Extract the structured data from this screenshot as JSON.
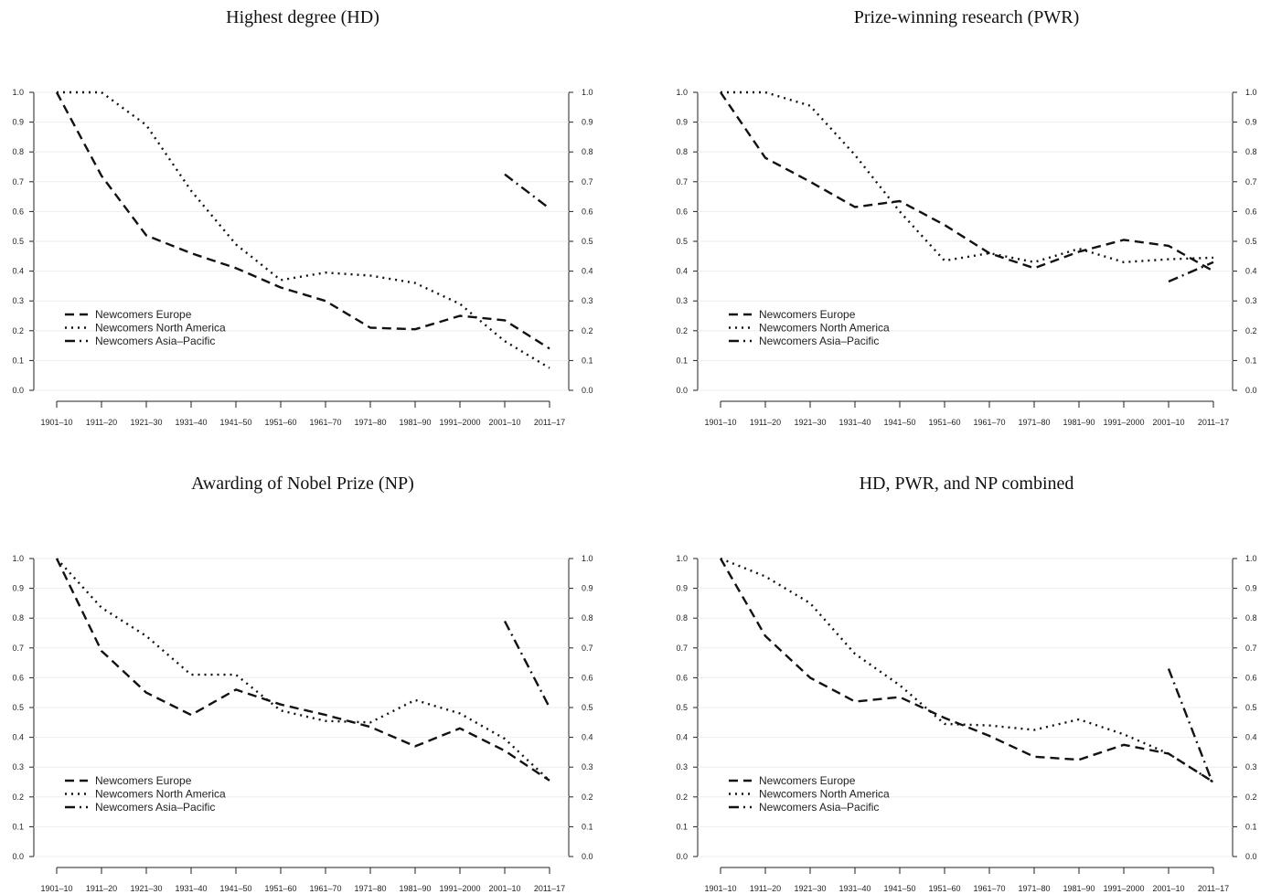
{
  "chart_data": [
    {
      "type": "line",
      "title": "Highest degree (HD)",
      "categories": [
        "1901–10",
        "1911–20",
        "1921–30",
        "1931–40",
        "1941–50",
        "1951–60",
        "1961–70",
        "1971–80",
        "1981–90",
        "1991–2000",
        "2001–10",
        "2011–17"
      ],
      "ylim": [
        0,
        1
      ],
      "yticks": [
        "0.0",
        "0.1",
        "0.2",
        "0.3",
        "0.4",
        "0.5",
        "0.6",
        "0.7",
        "0.8",
        "0.9",
        "1.0"
      ],
      "grid": true,
      "legend": "left",
      "series": [
        {
          "name": "Newcomers Europe",
          "style": "dashed",
          "values": [
            1.0,
            0.72,
            0.52,
            0.46,
            0.41,
            0.345,
            0.3,
            0.21,
            0.205,
            0.25,
            0.235,
            0.14
          ]
        },
        {
          "name": "Newcomers North America",
          "style": "dotted",
          "values": [
            1.0,
            1.0,
            0.89,
            0.67,
            0.49,
            0.37,
            0.395,
            0.385,
            0.36,
            0.29,
            0.165,
            0.075
          ]
        },
        {
          "name": "Newcomers Asia–Pacific",
          "style": "dashdot",
          "values": [
            null,
            null,
            null,
            null,
            null,
            null,
            null,
            null,
            null,
            null,
            0.725,
            0.61
          ]
        }
      ]
    },
    {
      "type": "line",
      "title": "Prize-winning research (PWR)",
      "categories": [
        "1901–10",
        "1911–20",
        "1921–30",
        "1931–40",
        "1941–50",
        "1951–60",
        "1961–70",
        "1971–80",
        "1981–90",
        "1991–2000",
        "2001–10",
        "2011–17"
      ],
      "ylim": [
        0,
        1
      ],
      "yticks": [
        "0.0",
        "0.1",
        "0.2",
        "0.3",
        "0.4",
        "0.5",
        "0.6",
        "0.7",
        "0.8",
        "0.9",
        "1.0"
      ],
      "grid": true,
      "legend": "left",
      "series": [
        {
          "name": "Newcomers Europe",
          "style": "dashed",
          "values": [
            1.0,
            0.78,
            0.7,
            0.615,
            0.635,
            0.555,
            0.46,
            0.41,
            0.465,
            0.505,
            0.485,
            0.4
          ]
        },
        {
          "name": "Newcomers North America",
          "style": "dotted",
          "values": [
            1.0,
            1.0,
            0.955,
            0.79,
            0.6,
            0.435,
            0.46,
            0.43,
            0.475,
            0.43,
            0.44,
            0.445
          ]
        },
        {
          "name": "Newcomers Asia–Pacific",
          "style": "dashdot",
          "values": [
            null,
            null,
            null,
            null,
            null,
            null,
            null,
            null,
            null,
            null,
            0.365,
            0.43
          ]
        }
      ]
    },
    {
      "type": "line",
      "title": "Awarding of Nobel Prize (NP)",
      "categories": [
        "1901–10",
        "1911–20",
        "1921–30",
        "1931–40",
        "1941–50",
        "1951–60",
        "1961–70",
        "1971–80",
        "1981–90",
        "1991–2000",
        "2001–10",
        "2011–17"
      ],
      "ylim": [
        0,
        1
      ],
      "yticks": [
        "0.0",
        "0.1",
        "0.2",
        "0.3",
        "0.4",
        "0.5",
        "0.6",
        "0.7",
        "0.8",
        "0.9",
        "1.0"
      ],
      "grid": true,
      "legend": "left",
      "series": [
        {
          "name": "Newcomers Europe",
          "style": "dashed",
          "values": [
            1.0,
            0.69,
            0.55,
            0.475,
            0.56,
            0.51,
            0.475,
            0.435,
            0.37,
            0.43,
            0.355,
            0.255
          ]
        },
        {
          "name": "Newcomers North America",
          "style": "dotted",
          "values": [
            1.0,
            0.835,
            0.74,
            0.61,
            0.61,
            0.49,
            0.455,
            0.45,
            0.525,
            0.48,
            0.395,
            0.255
          ]
        },
        {
          "name": "Newcomers Asia–Pacific",
          "style": "dashdot",
          "values": [
            null,
            null,
            null,
            null,
            null,
            null,
            null,
            null,
            null,
            null,
            0.79,
            0.5
          ]
        }
      ]
    },
    {
      "type": "line",
      "title": "HD, PWR, and NP combined",
      "categories": [
        "1901–10",
        "1911–20",
        "1921–30",
        "1931–40",
        "1941–50",
        "1951–60",
        "1961–70",
        "1971–80",
        "1981–90",
        "1991–2000",
        "2001–10",
        "2011–17"
      ],
      "ylim": [
        0,
        1
      ],
      "yticks": [
        "0.0",
        "0.1",
        "0.2",
        "0.3",
        "0.4",
        "0.5",
        "0.6",
        "0.7",
        "0.8",
        "0.9",
        "1.0"
      ],
      "grid": true,
      "legend": "left",
      "series": [
        {
          "name": "Newcomers Europe",
          "style": "dashed",
          "values": [
            1.0,
            0.74,
            0.6,
            0.52,
            0.535,
            0.465,
            0.405,
            0.335,
            0.325,
            0.375,
            0.345,
            0.25
          ]
        },
        {
          "name": "Newcomers North America",
          "style": "dotted",
          "values": [
            1.0,
            0.94,
            0.85,
            0.68,
            0.575,
            0.445,
            0.44,
            0.425,
            0.46,
            0.41,
            0.345,
            0.25
          ]
        },
        {
          "name": "Newcomers Asia–Pacific",
          "style": "dashdot",
          "values": [
            null,
            null,
            null,
            null,
            null,
            null,
            null,
            null,
            null,
            null,
            0.63,
            0.24
          ]
        }
      ]
    }
  ]
}
